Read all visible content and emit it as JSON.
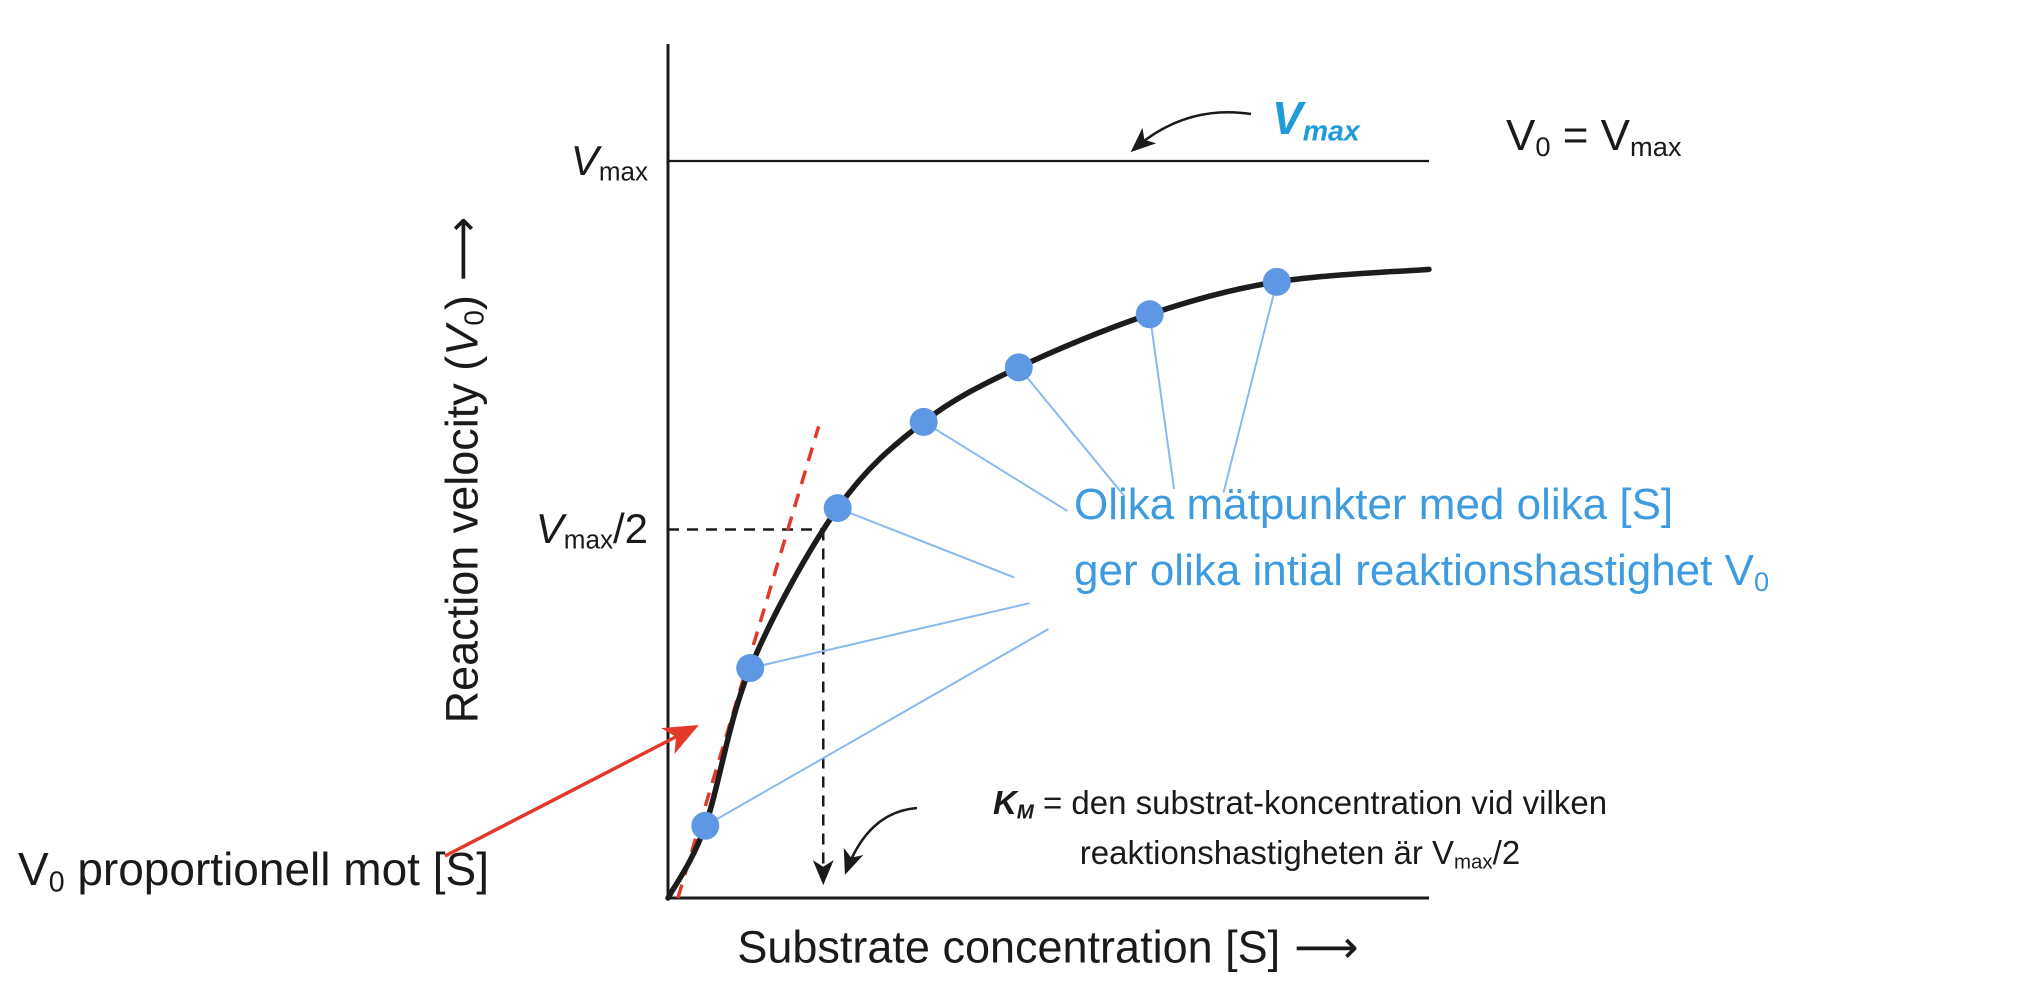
{
  "figure": {
    "y_axis_label": {
      "pre": "Reaction velocity (",
      "v": "V",
      "v_sub": "0",
      "post": ")",
      "arrow": "⟶"
    },
    "x_axis_label": {
      "text": "Substrate concentration [S]",
      "arrow": "⟶"
    },
    "vmax_tick": {
      "v": "V",
      "sub": "max"
    },
    "half_vmax_tick": {
      "v": "V",
      "sub": "max",
      "post": "/2"
    },
    "vmax_callout": {
      "v": "V",
      "sub": "max"
    },
    "v0_equals_vmax": {
      "v1": "V",
      "sub1": "0",
      "mid": " = V",
      "sub2": "max"
    },
    "measurement_note": {
      "line1": "Olika mätpunkter med olika [S]",
      "line2_pre": "ger olika intial reaktionshastighet V",
      "line2_sub": "0"
    },
    "km_definition": {
      "k": "K",
      "k_sub": "M",
      "line1_rest": " = den substrat-koncentration vid vilken",
      "line2_pre": "reaktionshastigheten är V",
      "line2_sub": "max",
      "line2_post": "/2"
    },
    "v0_proportional": {
      "v": "V",
      "sub": "0",
      "rest": " proportionell mot [S]"
    }
  },
  "colors": {
    "ink": "#1a1a1a",
    "curve": "#1c1c1c",
    "data_point_blue": "#5e97e3",
    "connector_blue": "#8ab9ee",
    "measurement_text_blue": "#3f9bdf",
    "vmax_callout_blue": "#1f9cd7",
    "annotation_red": "#e2392b"
  },
  "chart_data": {
    "type": "line",
    "title": "",
    "xlabel": "Substrate concentration [S]",
    "ylabel": "Reaction velocity (V0)",
    "x_axis": {
      "range_relative": [
        0,
        1
      ],
      "ticks": []
    },
    "y_axis": {
      "range_vmax_fraction": [
        0,
        1.16
      ],
      "reference_levels": {
        "vmax": 1.0,
        "half_vmax": 0.5
      }
    },
    "km_x_fraction": 0.204,
    "series": [
      {
        "name": "reaction-velocity-curve",
        "points_fraction": [
          [
            0,
            0
          ],
          [
            0.049,
            0.098
          ],
          [
            0.108,
            0.312
          ],
          [
            0.223,
            0.529
          ],
          [
            0.336,
            0.646
          ],
          [
            0.461,
            0.72
          ],
          [
            0.633,
            0.792
          ],
          [
            0.8,
            0.836
          ],
          [
            1,
            0.853
          ]
        ]
      }
    ],
    "scatter_points_fraction": [
      [
        0.049,
        0.098
      ],
      [
        0.108,
        0.312
      ],
      [
        0.223,
        0.529
      ],
      [
        0.336,
        0.646
      ],
      [
        0.461,
        0.72
      ],
      [
        0.633,
        0.792
      ],
      [
        0.8,
        0.836
      ]
    ],
    "initial_slope_line_fraction": {
      "x1": 0.013,
      "y1": 0,
      "x2": 0.198,
      "y2": 0.64
    },
    "connector_targets_fraction": [
      [
        0.5,
        0.365
      ],
      [
        0.475,
        0.4
      ],
      [
        0.455,
        0.435
      ],
      [
        0.525,
        0.525
      ],
      [
        0.6,
        0.545
      ],
      [
        0.665,
        0.555
      ],
      [
        0.73,
        0.55
      ]
    ]
  }
}
